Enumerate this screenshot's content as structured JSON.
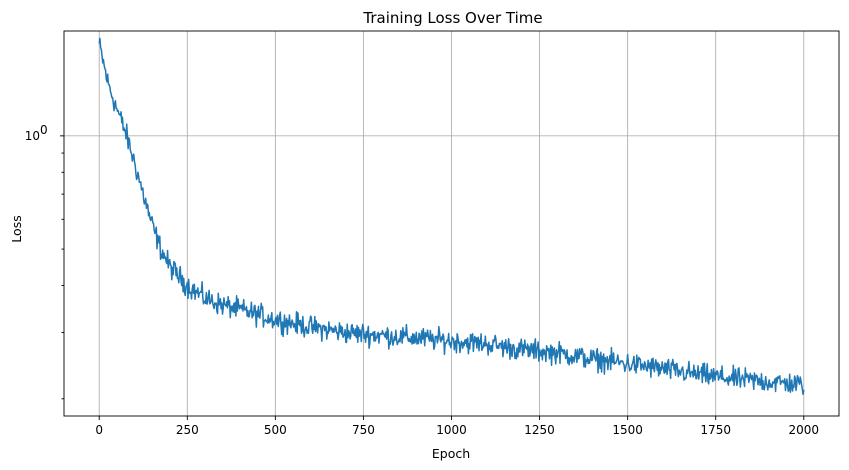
{
  "chart_data": {
    "type": "line",
    "title": "Training Loss Over Time",
    "xlabel": "Epoch",
    "ylabel": "Loss",
    "xlim": [
      -100,
      2100
    ],
    "ylim": [
      0.18,
      1.9
    ],
    "yscale": "log",
    "grid": true,
    "x_ticks": [
      0,
      250,
      500,
      750,
      1000,
      1250,
      1500,
      1750,
      2000
    ],
    "x_tick_labels": [
      "0",
      "250",
      "500",
      "750",
      "1000",
      "1250",
      "1500",
      "1750",
      "2000"
    ],
    "y_major_ticks": [
      1.0
    ],
    "y_major_tick_labels": [
      "10",
      "0"
    ],
    "y_minor_ticks": [
      0.2,
      0.3,
      0.4,
      0.5,
      0.6,
      0.7,
      0.8,
      0.9
    ],
    "series": [
      {
        "color": "#1f77b4",
        "x": [
          0,
          25,
          50,
          75,
          100,
          125,
          150,
          175,
          200,
          250,
          300,
          350,
          400,
          450,
          500,
          600,
          700,
          800,
          900,
          1000,
          1100,
          1200,
          1300,
          1400,
          1500,
          1600,
          1700,
          1800,
          1900,
          2000
        ],
        "values": [
          1.75,
          1.38,
          1.18,
          1.02,
          0.85,
          0.7,
          0.58,
          0.5,
          0.45,
          0.4,
          0.37,
          0.355,
          0.345,
          0.335,
          0.325,
          0.31,
          0.3,
          0.295,
          0.29,
          0.285,
          0.28,
          0.27,
          0.265,
          0.255,
          0.248,
          0.24,
          0.232,
          0.226,
          0.222,
          0.218
        ],
        "noise": 0.045
      }
    ]
  }
}
